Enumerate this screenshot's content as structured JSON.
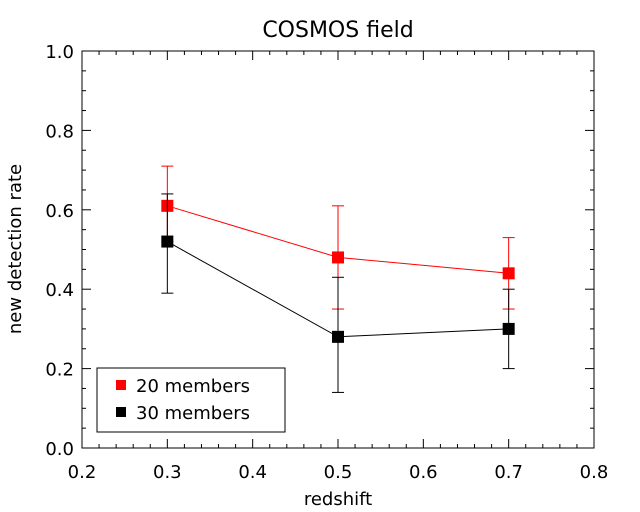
{
  "chart_data": {
    "type": "scatter",
    "title": "COSMOS field",
    "xlabel": "redshift",
    "ylabel": "new detection rate",
    "xlim": [
      0.2,
      0.8
    ],
    "ylim": [
      0.0,
      1.0
    ],
    "xticks": [
      0.2,
      0.3,
      0.4,
      0.5,
      0.6,
      0.7,
      0.8
    ],
    "yticks": [
      0.0,
      0.2,
      0.4,
      0.6,
      0.8,
      1.0
    ],
    "xtick_labels": [
      "0.2",
      "0.3",
      "0.4",
      "0.5",
      "0.6",
      "0.7",
      "0.8"
    ],
    "ytick_labels": [
      "0.0",
      "0.2",
      "0.4",
      "0.6",
      "0.8",
      "1.0"
    ],
    "legend_position": "bottom-left",
    "series": [
      {
        "name": "20 members",
        "color": "#ff0000",
        "x": [
          0.3,
          0.5,
          0.7
        ],
        "y": [
          0.61,
          0.48,
          0.44
        ],
        "err_low": [
          0.52,
          0.35,
          0.35
        ],
        "err_high": [
          0.71,
          0.61,
          0.53
        ]
      },
      {
        "name": "30 members",
        "color": "#000000",
        "x": [
          0.3,
          0.5,
          0.7
        ],
        "y": [
          0.52,
          0.28,
          0.3
        ],
        "err_low": [
          0.39,
          0.14,
          0.2
        ],
        "err_high": [
          0.64,
          0.43,
          0.4
        ]
      }
    ]
  }
}
